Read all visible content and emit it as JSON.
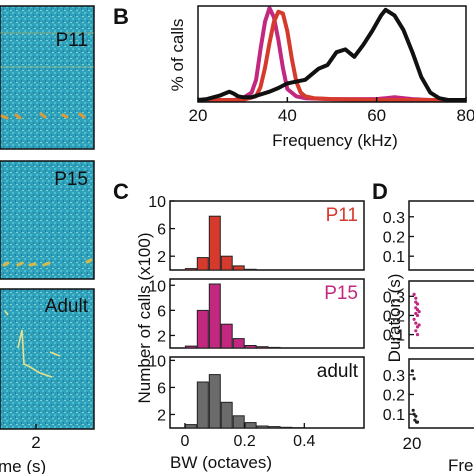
{
  "panels": {
    "A": {
      "spectrograms": [
        {
          "label": "P11"
        },
        {
          "label": "P15"
        },
        {
          "label": "Adult"
        }
      ],
      "xtick": "2",
      "xlabel": "me (s)"
    },
    "B": {
      "letter": "B"
    },
    "C": {
      "letter": "C"
    },
    "D": {
      "letter": "D",
      "ylabel": "Duration (s)",
      "xtick": "20",
      "xlabel": "Fre",
      "colors": {
        "P15": "#c2287f",
        "adult": "#222222"
      }
    }
  },
  "chart_data": [
    {
      "id": "B",
      "type": "line",
      "xlabel": "Frequency (kHz)",
      "ylabel": "% of calls",
      "xlim": [
        20,
        80
      ],
      "xticks": [
        20,
        40,
        60,
        80
      ],
      "series": [
        {
          "color": "#c2287f",
          "x": [
            20,
            28,
            30,
            32,
            33,
            34,
            35,
            36,
            37,
            38,
            39,
            40,
            42,
            44,
            50,
            60,
            62,
            64,
            68,
            72,
            80
          ],
          "y": [
            0,
            0,
            2,
            8,
            22,
            55,
            85,
            100,
            90,
            65,
            35,
            12,
            4,
            2,
            1,
            1,
            2,
            3,
            1,
            0,
            0
          ]
        },
        {
          "color": "#d63a2c",
          "x": [
            20,
            30,
            33,
            34,
            35,
            36,
            37,
            38,
            39,
            40,
            41,
            42,
            43,
            44,
            46,
            50,
            60,
            80
          ],
          "y": [
            0,
            0,
            4,
            14,
            35,
            62,
            85,
            96,
            94,
            75,
            45,
            20,
            8,
            4,
            2,
            1,
            0,
            0
          ]
        },
        {
          "color": "#111111",
          "x": [
            20,
            22,
            25,
            27,
            28,
            29,
            30,
            32,
            34,
            36,
            38,
            40,
            42,
            44,
            45,
            47,
            49,
            51,
            53,
            55,
            57,
            59,
            61,
            62,
            64,
            66,
            68,
            70,
            72,
            74,
            76,
            80
          ],
          "y": [
            0,
            1,
            5,
            9,
            7,
            4,
            3,
            3,
            6,
            9,
            13,
            18,
            20,
            22,
            26,
            34,
            38,
            52,
            55,
            47,
            60,
            75,
            92,
            98,
            92,
            76,
            52,
            25,
            8,
            2,
            0,
            0
          ]
        }
      ]
    },
    {
      "id": "C",
      "type": "bar",
      "xlabel": "BW (octaves)",
      "ylabel": "Number of calls (x100)",
      "xlim": [
        -0.05,
        0.6
      ],
      "xticks": [
        0,
        0.2,
        0.4
      ],
      "xticklabels": [
        "0",
        "0.2",
        "0.4"
      ],
      "bin_width": 0.04,
      "subplots": [
        {
          "label": "P11",
          "color": "#d63a2c",
          "ylim": [
            0,
            10
          ],
          "yticks": [
            2,
            6,
            10
          ],
          "x": [
            0.02,
            0.06,
            0.1,
            0.14,
            0.18,
            0.22,
            0.26,
            0.3
          ],
          "values": [
            0.2,
            1.8,
            7.8,
            2.0,
            0.6,
            0.1,
            0,
            0
          ]
        },
        {
          "label": "P15",
          "color": "#c2287f",
          "ylim": [
            0,
            11
          ],
          "yticks": [
            2,
            6,
            10
          ],
          "x": [
            0.02,
            0.06,
            0.1,
            0.14,
            0.18,
            0.22,
            0.26,
            0.3
          ],
          "values": [
            0.3,
            6.0,
            10.2,
            3.8,
            1.5,
            0.4,
            0.2,
            0.1
          ]
        },
        {
          "label": "adult",
          "color": "#6b6b6b",
          "ylim": [
            0,
            10.5
          ],
          "yticks": [
            2,
            6,
            10
          ],
          "x": [
            0.02,
            0.06,
            0.1,
            0.14,
            0.18,
            0.22,
            0.26,
            0.3,
            0.34,
            0.38
          ],
          "values": [
            0.5,
            6.8,
            7.9,
            3.8,
            1.8,
            0.8,
            0.3,
            0.2,
            0.1,
            0.05
          ]
        }
      ]
    },
    {
      "id": "D",
      "type": "scatter",
      "subplots": [
        {
          "yticks": [
            0.1,
            0.2,
            0.3
          ],
          "yticklabels": [
            "0.1",
            "0.2",
            "0.3"
          ],
          "points": []
        },
        {
          "yticks": [
            0.1,
            0.2,
            0.3
          ],
          "yticklabels": [
            "0.1",
            "0.2",
            "0.3"
          ],
          "group": "P15",
          "points": [
            [
              21,
              0.31
            ],
            [
              22,
              0.29
            ],
            [
              22,
              0.27
            ],
            [
              23,
              0.26
            ],
            [
              22,
              0.24
            ],
            [
              23,
              0.23
            ],
            [
              22,
              0.21
            ],
            [
              23,
              0.2
            ],
            [
              21,
              0.18
            ],
            [
              22,
              0.16
            ],
            [
              23,
              0.14
            ],
            [
              22,
              0.12
            ],
            [
              23,
              0.1
            ],
            [
              24,
              0.15
            ],
            [
              24,
              0.22
            ]
          ]
        },
        {
          "yticks": [
            0.1,
            0.2,
            0.3
          ],
          "yticklabels": [
            "0.1",
            "0.2",
            "0.3"
          ],
          "group": "adult",
          "points": [
            [
              20,
              0.32
            ],
            [
              21,
              0.28
            ],
            [
              20.5,
              0.12
            ],
            [
              21,
              0.1
            ],
            [
              21.5,
              0.07
            ],
            [
              22.5,
              0.06
            ],
            [
              23,
              0.06
            ],
            [
              22,
              0.09
            ]
          ]
        }
      ]
    }
  ]
}
